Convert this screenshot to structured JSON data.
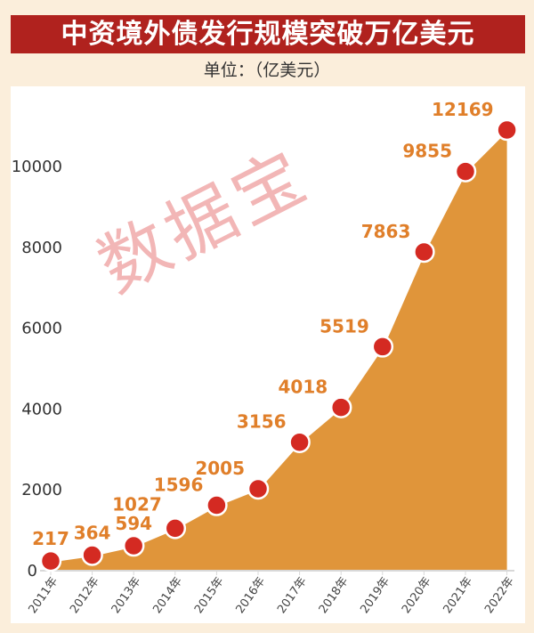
{
  "chart_data": {
    "type": "area",
    "title": "中资境外债发行规模突破万亿美元",
    "subtitle": "单位：（亿美元）",
    "categories": [
      "2011年",
      "2012年",
      "2013年",
      "2014年",
      "2015年",
      "2016年",
      "2017年",
      "2018年",
      "2019年",
      "2020年",
      "2021年",
      "2022年"
    ],
    "values": [
      217,
      364,
      594,
      1027,
      1596,
      2005,
      3156,
      4018,
      5519,
      7863,
      9855,
      12169
    ],
    "yticks": [
      "0",
      "2000",
      "4000",
      "6000",
      "8000",
      "10000"
    ],
    "ylim": [
      0,
      10000
    ],
    "grid": false,
    "watermark": "数据宝",
    "colors": {
      "area": "#e0953a",
      "marker": "#d42a22",
      "label": "#e07f2a",
      "title_bg": "#b0221e"
    }
  }
}
